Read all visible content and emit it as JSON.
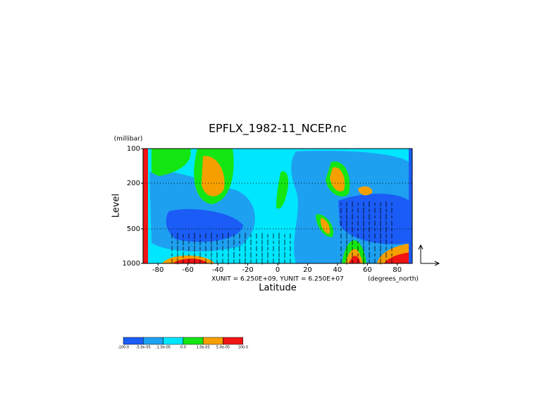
{
  "chart_data": {
    "type": "contour",
    "title": "EPFLX_1982-11_NCEP.nc",
    "y_unit": "(millibar)",
    "y_label": "Level",
    "x_label": "Latitude",
    "x_unit": "(degrees_north)",
    "vector_note": "XUNIT = 6.250E+09, YUNIT = 6.250E+07",
    "xlim": [
      -90,
      90
    ],
    "xticks": [
      -80,
      -60,
      -40,
      -20,
      0,
      20,
      40,
      60,
      80
    ],
    "ylim": [
      1000,
      100
    ],
    "y_log": true,
    "yticks": [
      100,
      200,
      500,
      1000
    ],
    "grid": true,
    "levels": [
      {
        "value": -100,
        "label": "-100.0"
      },
      {
        "value": -5e-05,
        "label": "-5.0e-05"
      },
      {
        "value": -1e-05,
        "label": "-1.0e-05"
      },
      {
        "value": 0,
        "label": "0.0"
      },
      {
        "value": 1e-05,
        "label": "1.0e-05"
      },
      {
        "value": 5e-05,
        "label": "5.0e-05"
      },
      {
        "value": 100,
        "label": "100.0"
      }
    ],
    "colors": [
      "#1a5cf5",
      "#1ea0f0",
      "#00e6ff",
      "#14e614",
      "#f5a000",
      "#f01414"
    ]
  }
}
